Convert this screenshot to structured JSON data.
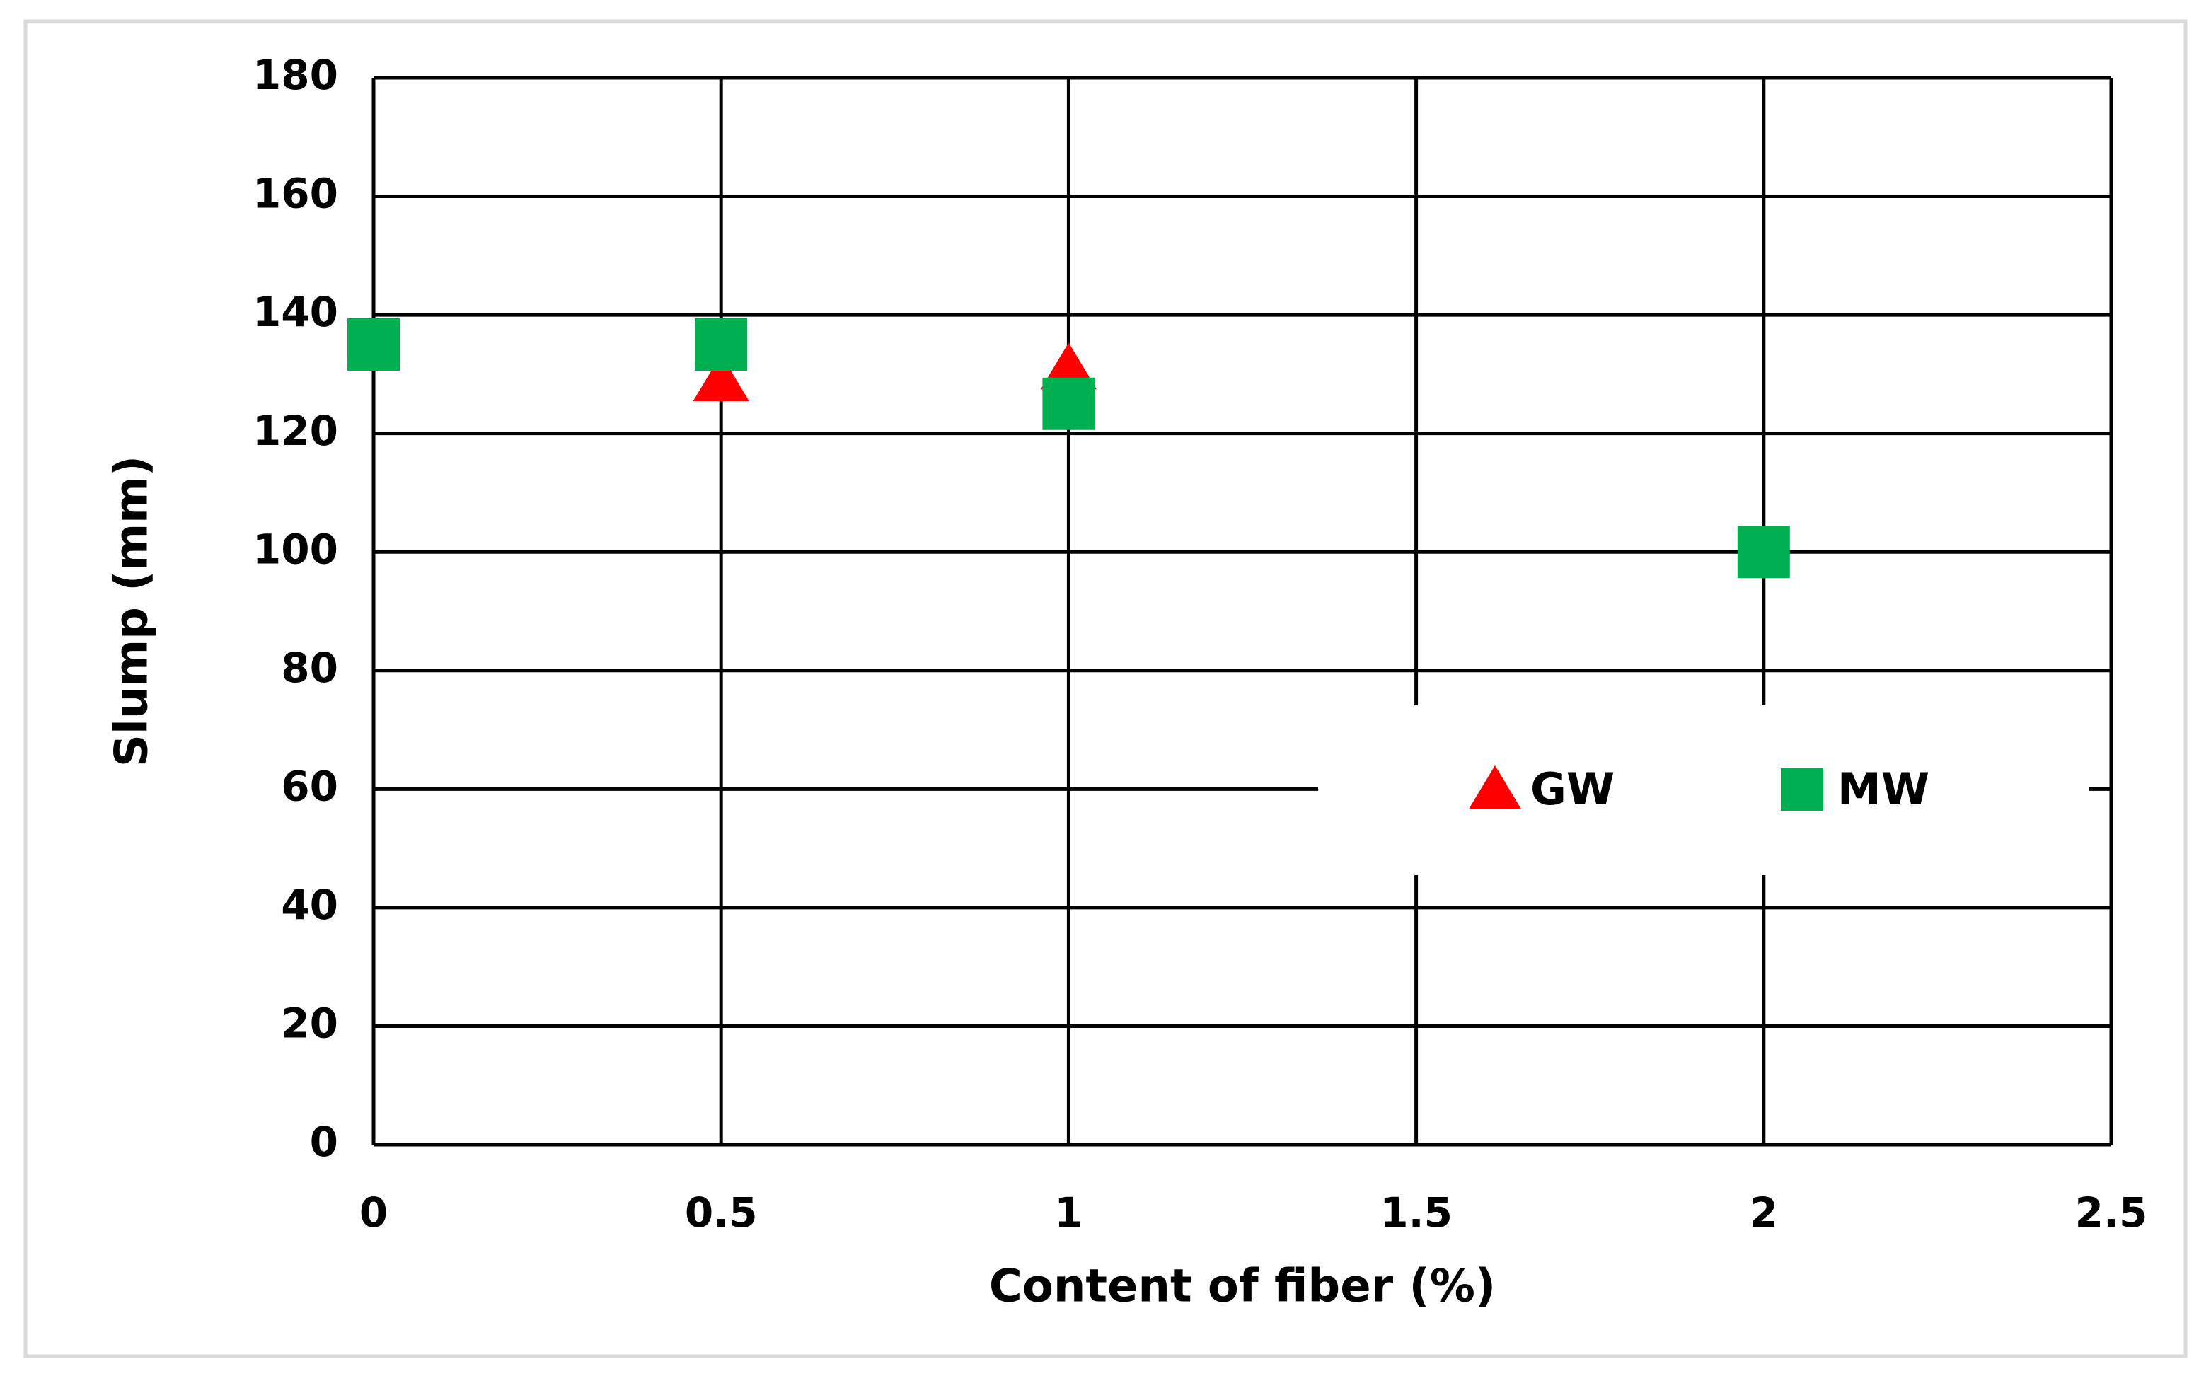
{
  "chart_data": {
    "type": "scatter",
    "xlabel": "Content of fiber (%)",
    "ylabel": "Slump (mm)",
    "xlim": [
      0,
      2.5
    ],
    "ylim": [
      0,
      180
    ],
    "xticks": [
      0,
      0.5,
      1,
      1.5,
      2,
      2.5
    ],
    "yticks": [
      0,
      20,
      40,
      60,
      80,
      100,
      120,
      140,
      160,
      180
    ],
    "grid": true,
    "legend": "right",
    "series": [
      {
        "name": "GW",
        "color": "#ff0000",
        "marker": "triangle",
        "x": [
          0.5,
          1
        ],
        "values": [
          129,
          131
        ]
      },
      {
        "name": "MW",
        "color": "#00b050",
        "marker": "square",
        "x": [
          0,
          0.5,
          1,
          2
        ],
        "values": [
          135,
          135,
          125,
          100
        ]
      }
    ]
  }
}
